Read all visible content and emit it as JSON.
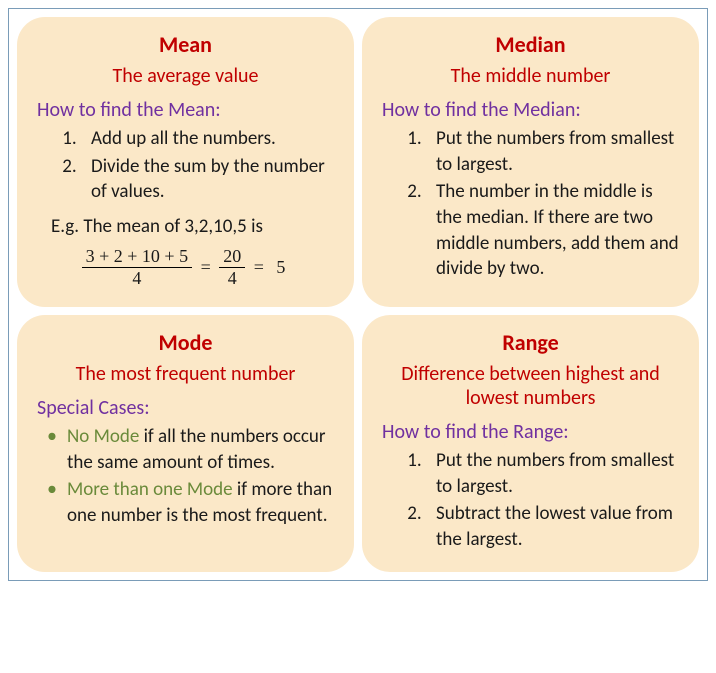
{
  "colors": {
    "card_bg": "#fbe8c8",
    "title": "#c00000",
    "subtitle": "#c00000",
    "howto": "#7030a0",
    "body": "#1a1a1a",
    "bullet": "#6a8a3a",
    "highlight": "#6a8a3a"
  },
  "cards": {
    "mean": {
      "title": "Mean",
      "subtitle": "The average value",
      "howto": "How to find the Mean:",
      "steps": [
        "Add up all the numbers.",
        "Divide the sum by the number of values."
      ],
      "example_label": "E.g. The mean of 3,2,10,5 is",
      "formula": {
        "num1": "3 + 2 + 10 + 5",
        "den1": "4",
        "num2": "20",
        "den2": "4",
        "result": "5"
      }
    },
    "median": {
      "title": "Median",
      "subtitle": "The middle number",
      "howto": "How to find the Median:",
      "steps": [
        "Put the numbers from smallest to largest.",
        "The number in the middle is the median. If there are two middle numbers, add them and divide by two."
      ]
    },
    "mode": {
      "title": "Mode",
      "subtitle": "The most frequent number",
      "special_label": "Special Cases:",
      "bullets": [
        {
          "hl": "No Mode",
          "rest": " if all the numbers occur the same amount of times."
        },
        {
          "hl": "More than one Mode",
          "rest": " if more than one number is the most frequent."
        }
      ]
    },
    "range": {
      "title": "Range",
      "subtitle": "Difference between highest and lowest numbers",
      "howto": "How to find the Range:",
      "steps": [
        "Put the numbers from smallest to largest.",
        "Subtract the lowest value from the largest."
      ]
    }
  }
}
